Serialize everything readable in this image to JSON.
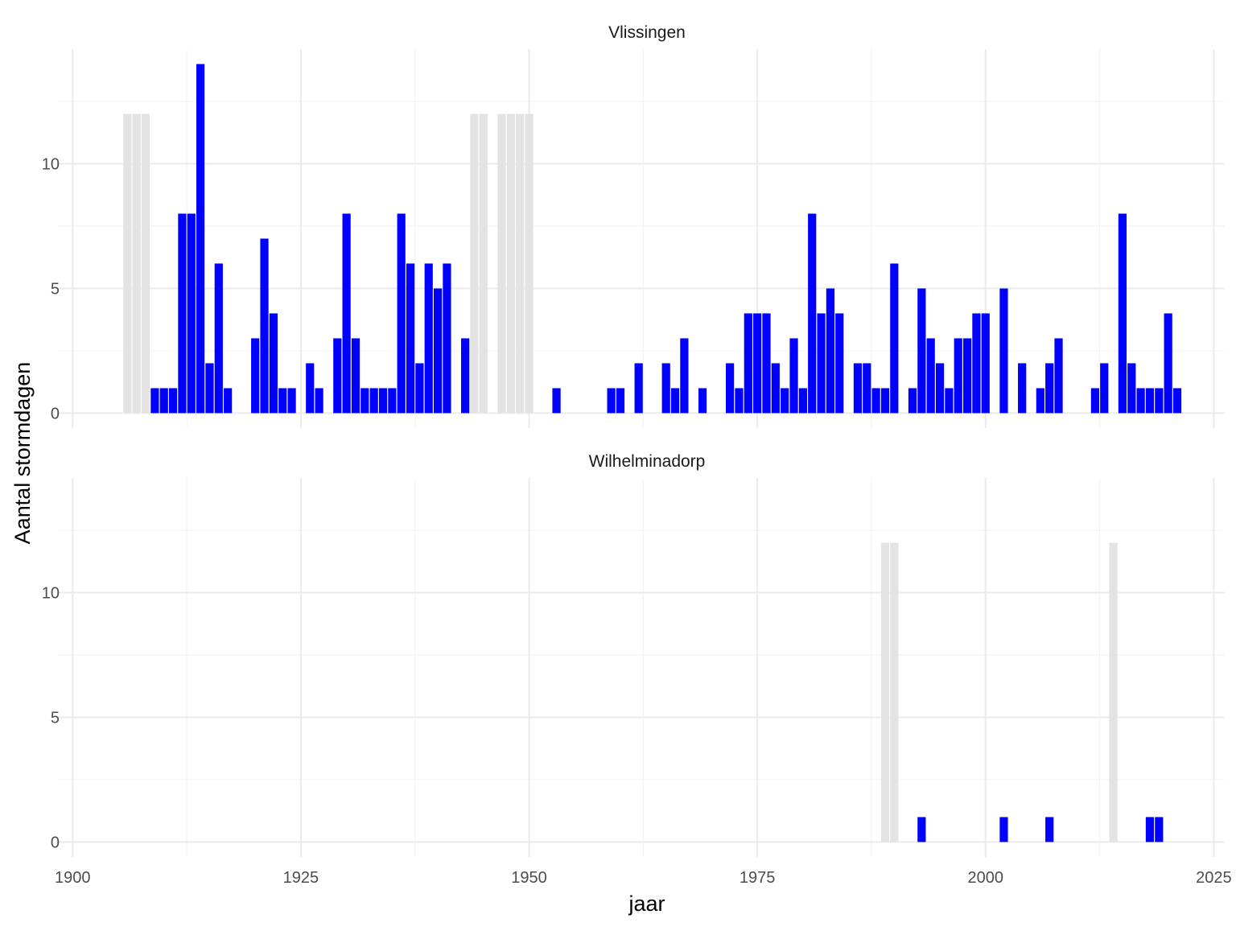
{
  "chart_data": {
    "type": "bar",
    "xlabel": "jaar",
    "ylabel": "Aantal stormdagen",
    "x_ticks": [
      "1900",
      "1925",
      "1950",
      "1975",
      "2000",
      "2025"
    ],
    "y_ticks": [
      "0",
      "5",
      "10"
    ],
    "x_range": [
      1898.3,
      2026.2
    ],
    "y_range": [
      -0.6,
      14.6
    ],
    "grid": true,
    "colors": {
      "value_bar": "#0000ff",
      "missing_bar": "#e3e3e3",
      "grid_major": "#ebebeb",
      "grid_minor": "#f4f4f4"
    },
    "missing_marker_value": 12,
    "panels": [
      {
        "title": "Vlissingen",
        "values": [
          [
            1909,
            1
          ],
          [
            1910,
            1
          ],
          [
            1911,
            1
          ],
          [
            1912,
            8
          ],
          [
            1913,
            8
          ],
          [
            1914,
            14
          ],
          [
            1915,
            2
          ],
          [
            1916,
            6
          ],
          [
            1917,
            1
          ],
          [
            1920,
            3
          ],
          [
            1921,
            7
          ],
          [
            1922,
            4
          ],
          [
            1923,
            1
          ],
          [
            1924,
            1
          ],
          [
            1926,
            2
          ],
          [
            1927,
            1
          ],
          [
            1929,
            3
          ],
          [
            1930,
            8
          ],
          [
            1931,
            3
          ],
          [
            1932,
            1
          ],
          [
            1933,
            1
          ],
          [
            1934,
            1
          ],
          [
            1935,
            1
          ],
          [
            1936,
            8
          ],
          [
            1937,
            6
          ],
          [
            1938,
            2
          ],
          [
            1939,
            6
          ],
          [
            1940,
            5
          ],
          [
            1941,
            6
          ],
          [
            1943,
            3
          ],
          [
            1953,
            1
          ],
          [
            1959,
            1
          ],
          [
            1960,
            1
          ],
          [
            1962,
            2
          ],
          [
            1965,
            2
          ],
          [
            1966,
            1
          ],
          [
            1967,
            3
          ],
          [
            1969,
            1
          ],
          [
            1972,
            2
          ],
          [
            1973,
            1
          ],
          [
            1974,
            4
          ],
          [
            1975,
            4
          ],
          [
            1976,
            4
          ],
          [
            1977,
            2
          ],
          [
            1978,
            1
          ],
          [
            1979,
            3
          ],
          [
            1980,
            1
          ],
          [
            1981,
            8
          ],
          [
            1982,
            4
          ],
          [
            1983,
            5
          ],
          [
            1984,
            4
          ],
          [
            1986,
            2
          ],
          [
            1987,
            2
          ],
          [
            1988,
            1
          ],
          [
            1989,
            1
          ],
          [
            1990,
            6
          ],
          [
            1992,
            1
          ],
          [
            1993,
            5
          ],
          [
            1994,
            3
          ],
          [
            1995,
            2
          ],
          [
            1996,
            1
          ],
          [
            1997,
            3
          ],
          [
            1998,
            3
          ],
          [
            1999,
            4
          ],
          [
            2000,
            4
          ],
          [
            2002,
            5
          ],
          [
            2004,
            2
          ],
          [
            2006,
            1
          ],
          [
            2007,
            2
          ],
          [
            2008,
            3
          ],
          [
            2012,
            1
          ],
          [
            2013,
            2
          ],
          [
            2015,
            8
          ],
          [
            2016,
            2
          ],
          [
            2017,
            1
          ],
          [
            2018,
            1
          ],
          [
            2019,
            1
          ],
          [
            2020,
            4
          ],
          [
            2021,
            1
          ]
        ],
        "missing_years": [
          1906,
          1907,
          1908,
          1944,
          1945,
          1947,
          1948,
          1949,
          1950
        ]
      },
      {
        "title": "Wilhelminadorp",
        "values": [
          [
            1993,
            1
          ],
          [
            2002,
            1
          ],
          [
            2007,
            1
          ],
          [
            2018,
            1
          ],
          [
            2019,
            1
          ]
        ],
        "missing_years": [
          1989,
          1990,
          2014
        ]
      }
    ]
  }
}
